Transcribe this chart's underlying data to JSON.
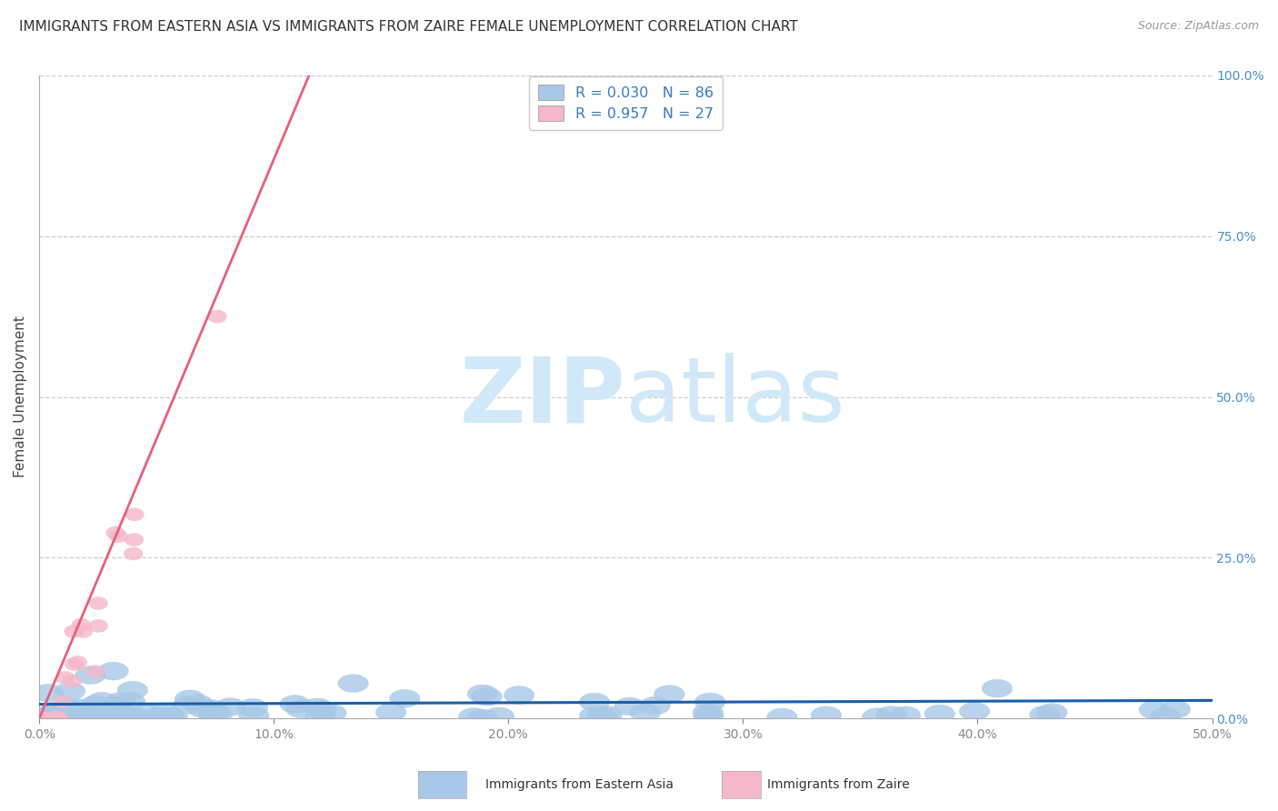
{
  "title": "IMMIGRANTS FROM EASTERN ASIA VS IMMIGRANTS FROM ZAIRE FEMALE UNEMPLOYMENT CORRELATION CHART",
  "source": "Source: ZipAtlas.com",
  "ylabel": "Female Unemployment",
  "xlim": [
    0.0,
    0.5
  ],
  "ylim": [
    0.0,
    1.0
  ],
  "xticks": [
    0.0,
    0.1,
    0.2,
    0.3,
    0.4,
    0.5
  ],
  "yticks": [
    0.0,
    0.25,
    0.5,
    0.75,
    1.0
  ],
  "xtick_labels": [
    "0.0%",
    "10.0%",
    "20.0%",
    "30.0%",
    "40.0%",
    "50.0%"
  ],
  "ytick_labels": [
    "0.0%",
    "25.0%",
    "50.0%",
    "75.0%",
    "100.0%"
  ],
  "series1_name": "Immigrants from Eastern Asia",
  "series1_color": "#a8c8e8",
  "series1_edge_color": "#a8c8e8",
  "series1_line_color": "#1a5fa8",
  "series1_R": 0.03,
  "series1_N": 86,
  "series2_name": "Immigrants from Zaire",
  "series2_color": "#f5b8c8",
  "series2_edge_color": "#f5b8c8",
  "series2_line_color": "#e8607a",
  "series2_R": 0.957,
  "series2_N": 27,
  "watermark_zip": "ZIP",
  "watermark_atlas": "atlas",
  "watermark_color": "#d0e8f8",
  "background_color": "#ffffff",
  "grid_color": "#cccccc",
  "title_fontsize": 11,
  "tick_color": "#4a90c8",
  "legend_color": "#3a7abf"
}
